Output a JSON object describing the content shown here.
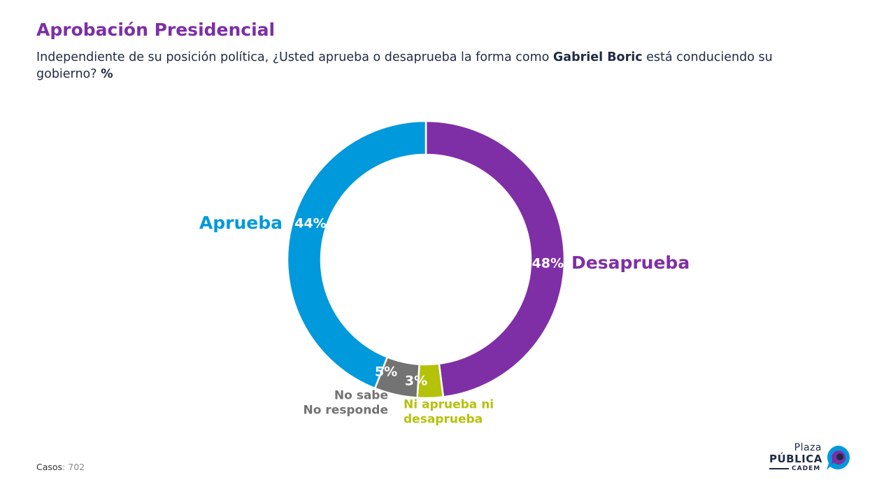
{
  "header": {
    "title": "Aprobación Presidencial",
    "subtitle_pre": "Independiente de su posición política, ¿Usted aprueba o desaprueba la forma como ",
    "subtitle_bold": "Gabriel Boric",
    "subtitle_post": " está conduciendo su gobierno? ",
    "subtitle_unit": "%"
  },
  "chart_data": {
    "type": "pie",
    "donut": true,
    "start": "top, clockwise",
    "categories": [
      "Desaprueba",
      "Ni aprueba ni desaprueba",
      "No sabe No responde",
      "Aprueba"
    ],
    "values": [
      48,
      3,
      5,
      44
    ],
    "value_labels": [
      "48%",
      "3%",
      "5%",
      "44%"
    ],
    "category_labels": [
      [
        "Desaprueba"
      ],
      [
        "Ni aprueba ni",
        "desaprueba"
      ],
      [
        "No sabe",
        "No responde"
      ],
      [
        "Aprueba"
      ]
    ],
    "colors": [
      "#7f2fa6",
      "#b4c20a",
      "#737373",
      "#0099dc"
    ]
  },
  "footer": {
    "cases_label": "Casos",
    "cases_value": ": 702"
  },
  "logo": {
    "line1": "Plaza",
    "line2": "PÚBLICA",
    "line3": "CADEM",
    "colors": [
      "#0099dc",
      "#7f2fa6",
      "#1f2a44"
    ]
  }
}
